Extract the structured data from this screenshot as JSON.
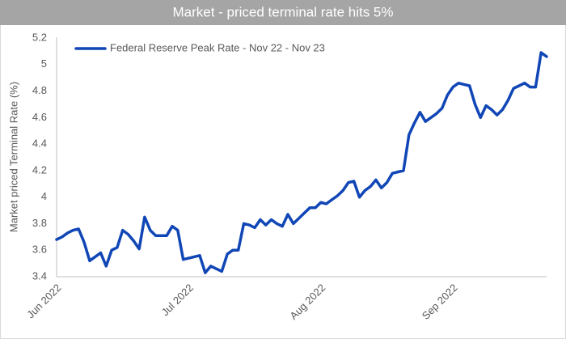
{
  "chart_data": {
    "type": "line",
    "title": "Market - priced terminal rate hits 5%",
    "y_label": "Market priced Terminal Rate (%)",
    "categories": [
      "Jun 2022",
      null,
      null,
      null,
      null,
      null,
      null,
      null,
      null,
      null,
      null,
      null,
      null,
      null,
      null,
      null,
      null,
      null,
      null,
      null,
      null,
      null,
      null,
      null,
      "Jul 2022",
      null,
      null,
      null,
      null,
      null,
      null,
      null,
      null,
      null,
      null,
      null,
      null,
      null,
      null,
      null,
      null,
      null,
      null,
      null,
      null,
      null,
      null,
      null,
      "Aug 2022",
      null,
      null,
      null,
      null,
      null,
      null,
      null,
      null,
      null,
      null,
      null,
      null,
      null,
      null,
      null,
      null,
      null,
      null,
      null,
      null,
      null,
      null,
      null,
      "Sep 2022",
      null,
      null,
      null,
      null,
      null,
      null,
      null,
      null,
      null,
      null,
      null,
      null,
      null,
      null,
      null,
      null,
      null
    ],
    "series": [
      {
        "name": "Federal Reserve Peak Rate - Nov 22 - Nov 23",
        "color": "#1046b6",
        "values": [
          3.68,
          3.7,
          3.73,
          3.75,
          3.76,
          3.66,
          3.52,
          3.55,
          3.58,
          3.48,
          3.6,
          3.62,
          3.75,
          3.72,
          3.67,
          3.61,
          3.85,
          3.75,
          3.71,
          3.71,
          3.71,
          3.78,
          3.75,
          3.53,
          3.54,
          3.55,
          3.56,
          3.43,
          3.48,
          3.46,
          3.44,
          3.57,
          3.6,
          3.6,
          3.8,
          3.79,
          3.77,
          3.83,
          3.79,
          3.83,
          3.8,
          3.78,
          3.87,
          3.8,
          3.84,
          3.88,
          3.92,
          3.92,
          3.96,
          3.95,
          3.98,
          4.01,
          4.05,
          4.11,
          4.12,
          4.0,
          4.05,
          4.08,
          4.13,
          4.07,
          4.11,
          4.18,
          4.19,
          4.2,
          4.47,
          4.56,
          4.64,
          4.57,
          4.6,
          4.63,
          4.67,
          4.77,
          4.83,
          4.86,
          4.85,
          4.84,
          4.7,
          4.6,
          4.69,
          4.66,
          4.62,
          4.66,
          4.73,
          4.82,
          4.84,
          4.86,
          4.83,
          4.83,
          5.09,
          5.06
        ]
      }
    ],
    "ylim": [
      3.4,
      5.2
    ],
    "yticks": [
      3.4,
      3.6,
      3.8,
      4,
      4.2,
      4.4,
      4.6,
      4.8,
      5,
      5.2
    ],
    "grid": false,
    "legend": "top-left"
  }
}
